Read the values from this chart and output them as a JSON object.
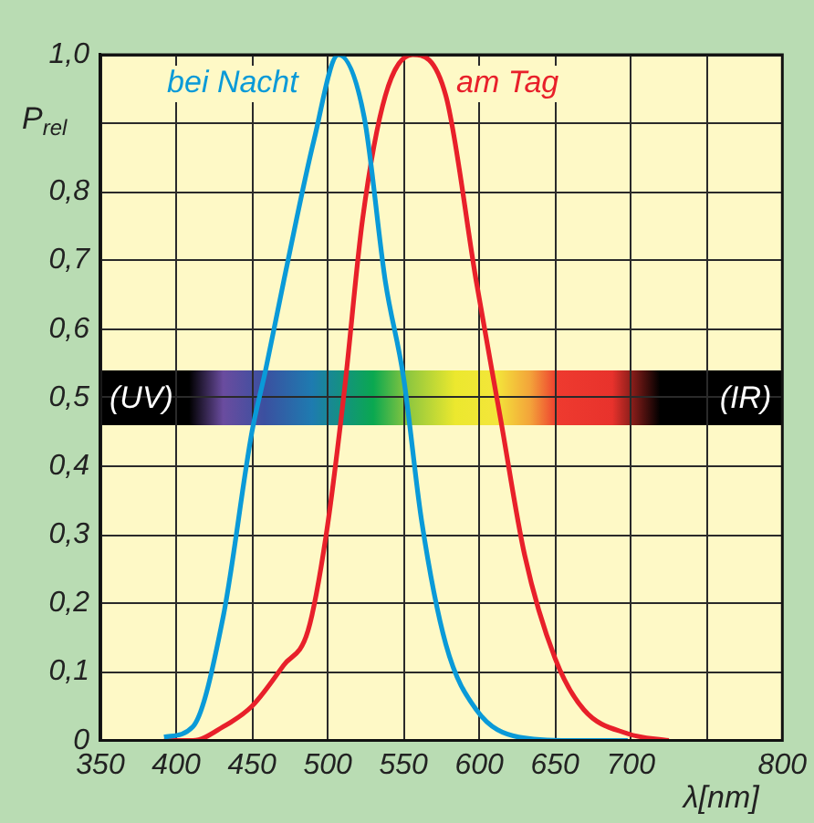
{
  "chart_data": {
    "type": "line",
    "xlabel": "λ[nm]",
    "ylabel": "P$_{rel}$",
    "xlim": [
      350,
      800
    ],
    "xticks": [
      350,
      400,
      450,
      500,
      550,
      600,
      650,
      700,
      {
        "value": 750,
        "label": null
      },
      800
    ],
    "ylim": [
      0,
      1
    ],
    "yticks": [
      0,
      {
        "value": 0.1,
        "label": "0,1"
      },
      {
        "value": 0.2,
        "label": "0,2"
      },
      {
        "value": 0.3,
        "label": "0,3"
      },
      {
        "value": 0.4,
        "label": "0,4"
      },
      {
        "value": 0.5,
        "label": "0,5"
      },
      {
        "value": 0.6,
        "label": "0,6"
      },
      {
        "value": 0.7,
        "label": "0,7"
      },
      {
        "value": 0.8,
        "label": "0,8"
      },
      {
        "value": 0.9,
        "label": null
      },
      {
        "value": 1,
        "label": "1,0"
      }
    ],
    "grid": true,
    "legend": false,
    "marker": "none",
    "line_style": "solid",
    "annotations": [
      "(UV)",
      "(IR)"
    ],
    "series": [
      {
        "name": "bei Nacht",
        "color": "#0a9ad8",
        "x": [
          392,
          411,
          431,
          450,
          459,
          471,
          491,
          507,
          524,
          538,
          550,
          562,
          578,
          598,
          626,
          660,
          698
        ],
        "values": [
          0.005,
          0.02,
          0.18,
          0.45,
          0.54,
          0.67,
          0.876,
          1,
          0.91,
          0.67,
          0.53,
          0.32,
          0.14,
          0.045,
          0.005,
          0,
          0
        ]
      },
      {
        "name": "am Tag",
        "color": "#e8202a",
        "x": [
          392,
          411,
          431,
          450,
          471,
          487,
          499,
          511,
          523,
          538,
          556,
          578,
          598,
          614,
          630,
          650,
          669,
          698,
          725
        ],
        "values": [
          0,
          0,
          0.02,
          0.05,
          0.11,
          0.16,
          0.3,
          0.51,
          0.76,
          0.94,
          1,
          0.94,
          0.67,
          0.47,
          0.27,
          0.12,
          0.045,
          0.01,
          0
        ]
      }
    ]
  }
}
